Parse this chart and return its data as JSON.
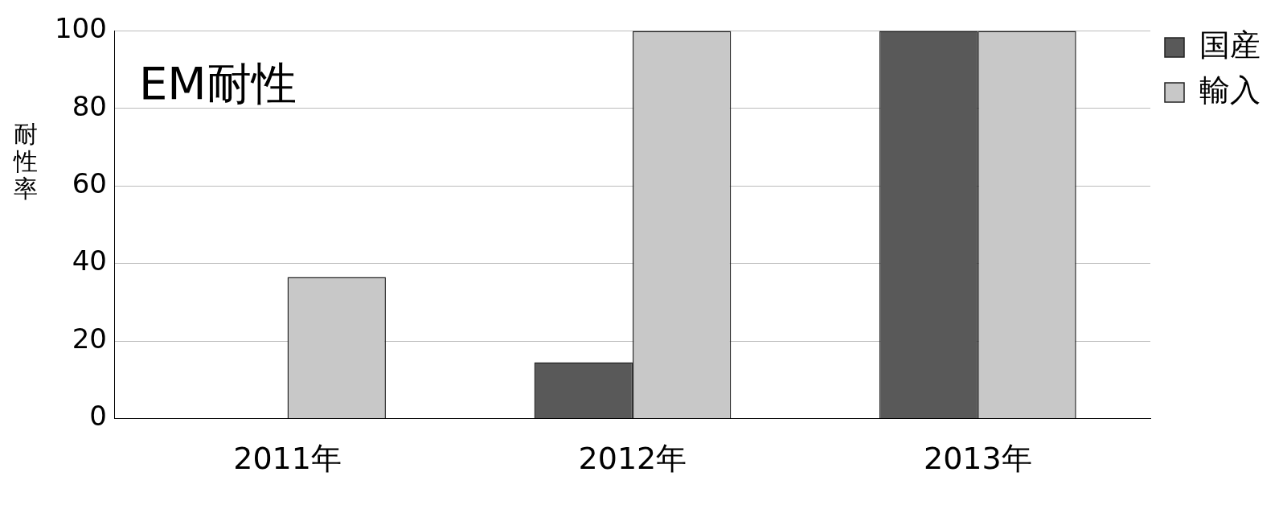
{
  "chart_data": {
    "type": "bar",
    "title": "EM耐性",
    "ylabel": "耐性率",
    "categories": [
      "2011年",
      "2012年",
      "2013年"
    ],
    "series": [
      {
        "name": "国産",
        "color": "#595959",
        "values": [
          0,
          14.5,
          100
        ]
      },
      {
        "name": "輸入",
        "color": "#c8c8c8",
        "values": [
          36.5,
          100,
          100
        ]
      }
    ],
    "ylim": [
      0,
      100
    ],
    "yticks": [
      0,
      20,
      40,
      60,
      80,
      100
    ],
    "grid": "y",
    "legend": "top right"
  }
}
